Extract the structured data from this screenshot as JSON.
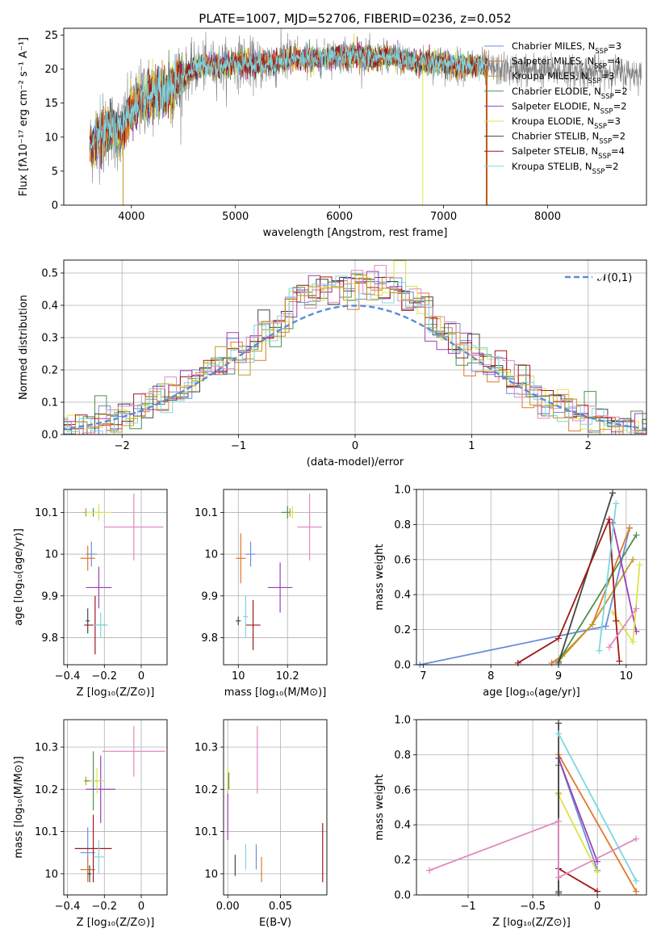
{
  "colors": [
    "#6a8fd8",
    "#e0782a",
    "#c09a20",
    "#4e8f4e",
    "#9b40b8",
    "#dde24a",
    "#444444",
    "#a01818",
    "#7ad8e0",
    "#e08ac0",
    "#909090"
  ],
  "chart_data": [
    {
      "id": "spectrum",
      "type": "line",
      "title": "PLATE=1007, MJD=52706, FIBERID=0236, z=0.052",
      "xlabel": "wavelength [Angstrom, rest frame]",
      "ylabel": "Flux [fλ10⁻¹⁷ erg cm⁻² s⁻¹ A⁻¹]",
      "xlim": [
        3350,
        8950
      ],
      "ylim": [
        0,
        26
      ],
      "xticks": [
        4000,
        5000,
        6000,
        7000,
        8000
      ],
      "yticks": [
        0,
        5,
        10,
        15,
        20,
        25
      ],
      "grid": false,
      "legend_position": "top-right",
      "observed_color": "#808080",
      "continuum": {
        "x": [
          3600,
          3700,
          3800,
          3900,
          3950,
          4000,
          4100,
          4200,
          4300,
          4400,
          4500,
          4600,
          4700,
          4800,
          4900,
          5000,
          5100,
          5200,
          5300,
          5400,
          5500,
          5600,
          5700,
          5800,
          5900,
          6000,
          6100,
          6200,
          6300,
          6400,
          6500,
          6600,
          6700,
          6800,
          6900,
          7000,
          7100,
          7200,
          7300,
          7400
        ],
        "y": [
          8.5,
          10.5,
          11.5,
          10.5,
          12.0,
          14.0,
          15.5,
          16.5,
          16.5,
          17.5,
          19.0,
          20.0,
          20.5,
          20.5,
          20.5,
          21.0,
          21.0,
          20.5,
          21.0,
          21.0,
          21.5,
          21.5,
          21.5,
          21.5,
          21.8,
          22.0,
          21.8,
          22.0,
          21.5,
          21.8,
          21.8,
          21.5,
          21.0,
          21.0,
          21.0,
          21.0,
          20.5,
          20.5,
          20.5,
          20.5
        ]
      },
      "models_end_x": 7420,
      "observed_end_x": 8900,
      "series": [
        {
          "name": "Chabrier MILES, N$_{SSP}$=3",
          "label_main": "Chabrier MILES, N",
          "sub": "SSP",
          "label_tail": "=3"
        },
        {
          "name": "Salpeter MILES, N$_{SSP}$=4",
          "label_main": "Salpeter MILES, N",
          "sub": "SSP",
          "label_tail": "=4"
        },
        {
          "name": "Kroupa MILES, N$_{SSP}$=3",
          "label_main": "Kroupa MILES, N",
          "sub": "SSP",
          "label_tail": "=3"
        },
        {
          "name": "Chabrier ELODIE, N$_{SSP}$=2",
          "label_main": "Chabrier ELODIE, N",
          "sub": "SSP",
          "label_tail": "=2"
        },
        {
          "name": "Salpeter ELODIE, N$_{SSP}$=2",
          "label_main": "Salpeter ELODIE, N",
          "sub": "SSP",
          "label_tail": "=2"
        },
        {
          "name": "Kroupa ELODIE, N$_{SSP}$=3",
          "label_main": "Kroupa ELODIE, N",
          "sub": "SSP",
          "label_tail": "=3"
        },
        {
          "name": "Chabrier STELIB, N$_{SSP}$=2",
          "label_main": "Chabrier STELIB, N",
          "sub": "SSP",
          "label_tail": "=2"
        },
        {
          "name": "Salpeter STELIB, N$_{SSP}$=4",
          "label_main": "Salpeter STELIB, N",
          "sub": "SSP",
          "label_tail": "=4"
        },
        {
          "name": "Kroupa STELIB, N$_{SSP}$=2",
          "label_main": "Kroupa STELIB, N",
          "sub": "SSP",
          "label_tail": "=2"
        }
      ]
    },
    {
      "id": "residuals",
      "type": "step",
      "xlabel": "(data-model)/error",
      "ylabel": "Normed distribution",
      "xlim": [
        -2.5,
        2.5
      ],
      "ylim": [
        0,
        0.54
      ],
      "xticks": [
        -2,
        -1,
        0,
        1,
        2
      ],
      "yticks": [
        0.0,
        0.1,
        0.2,
        0.3,
        0.4,
        0.5
      ],
      "grid": true,
      "legend": {
        "label": "𝒩(0,1)",
        "position": "top-right"
      },
      "gaussian": {
        "mean": 0,
        "sigma": 1
      },
      "bin_width": 0.1
    },
    {
      "id": "age-vs-Z",
      "type": "errorbar",
      "xlabel": "Z [log₁₀(Z/Z⊙)]",
      "ylabel": "age  [log₁₀(age/yr)]",
      "xlim": [
        -0.42,
        0.14
      ],
      "ylim": [
        9.735,
        10.155
      ],
      "xticks": [
        -0.4,
        -0.2,
        0.0
      ],
      "yticks": [
        9.8,
        9.9,
        10.0,
        10.1
      ],
      "grid": true,
      "points": [
        {
          "c": 0,
          "x": -0.27,
          "xerr": 0.03,
          "y": 10.0,
          "yerr": 0.03
        },
        {
          "c": 1,
          "x": -0.29,
          "xerr": 0.04,
          "y": 9.99,
          "yerr": 0.03
        },
        {
          "c": 2,
          "x": -0.3,
          "xerr": 0.01,
          "y": 10.1,
          "yerr": 0.01
        },
        {
          "c": 3,
          "x": -0.26,
          "xerr": 0.04,
          "y": 10.1,
          "yerr": 0.01
        },
        {
          "c": 4,
          "x": -0.23,
          "xerr": 0.07,
          "y": 9.92,
          "yerr": 0.05
        },
        {
          "c": 5,
          "x": -0.23,
          "xerr": 0.07,
          "y": 10.1,
          "yerr": 0.02
        },
        {
          "c": 6,
          "x": -0.29,
          "xerr": 0.01,
          "y": 9.84,
          "yerr": 0.03
        },
        {
          "c": 7,
          "x": -0.25,
          "xerr": 0.06,
          "y": 9.83,
          "yerr": 0.07
        },
        {
          "c": 8,
          "x": -0.22,
          "xerr": 0.04,
          "y": 9.83,
          "yerr": 0.03
        },
        {
          "c": 9,
          "x": -0.04,
          "xerr": 0.16,
          "y": 10.065,
          "yerr": 0.08
        }
      ]
    },
    {
      "id": "age-vs-mass",
      "type": "errorbar",
      "xlabel": "mass [log₁₀(M/M⊙)]",
      "ylabel": "",
      "xlim": [
        9.94,
        10.36
      ],
      "ylim": [
        9.735,
        10.155
      ],
      "xticks": [
        10.0,
        10.2
      ],
      "yticks": [
        9.8,
        9.9,
        10.0,
        10.1
      ],
      "grid": true,
      "points": [
        {
          "c": 0,
          "x": 10.05,
          "xerr": 0.02,
          "y": 10.0,
          "yerr": 0.03
        },
        {
          "c": 1,
          "x": 10.01,
          "xerr": 0.02,
          "y": 9.99,
          "yerr": 0.06
        },
        {
          "c": 2,
          "x": 10.21,
          "xerr": 0.01,
          "y": 10.1,
          "yerr": 0.01
        },
        {
          "c": 3,
          "x": 10.2,
          "xerr": 0.025,
          "y": 10.1,
          "yerr": 0.015
        },
        {
          "c": 4,
          "x": 10.17,
          "xerr": 0.05,
          "y": 9.92,
          "yerr": 0.06
        },
        {
          "c": 5,
          "x": 10.22,
          "xerr": 0.01,
          "y": 10.1,
          "yerr": 0.015
        },
        {
          "c": 6,
          "x": 10.0,
          "xerr": 0.01,
          "y": 9.84,
          "yerr": 0.01
        },
        {
          "c": 7,
          "x": 10.06,
          "xerr": 0.03,
          "y": 9.83,
          "yerr": 0.06
        },
        {
          "c": 8,
          "x": 10.03,
          "xerr": 0.01,
          "y": 9.85,
          "yerr": 0.05
        },
        {
          "c": 9,
          "x": 10.29,
          "xerr": 0.05,
          "y": 10.065,
          "yerr": 0.08
        }
      ]
    },
    {
      "id": "weight-vs-age",
      "type": "line",
      "xlabel": "age  [log₁₀(age/yr)]",
      "ylabel": "mass weight",
      "xlim": [
        6.9,
        10.3
      ],
      "ylim": [
        0,
        1
      ],
      "xticks": [
        7,
        8,
        9,
        10
      ],
      "yticks": [
        0.0,
        0.2,
        0.4,
        0.6,
        0.8,
        1.0
      ],
      "grid": true,
      "series": [
        {
          "c": 0,
          "x": [
            6.95,
            9.7,
            10.05
          ],
          "y": [
            0.0,
            0.22,
            0.78
          ]
        },
        {
          "c": 1,
          "x": [
            8.9,
            9.05,
            9.5,
            10.05
          ],
          "y": [
            0.01,
            0.05,
            0.23,
            0.78
          ]
        },
        {
          "c": 2,
          "x": [
            9.0,
            9.5,
            10.1
          ],
          "y": [
            0.02,
            0.23,
            0.6
          ]
        },
        {
          "c": 3,
          "x": [
            9.0,
            10.15
          ],
          "y": [
            0.02,
            0.74
          ]
        },
        {
          "c": 4,
          "x": [
            9.8,
            10.15
          ],
          "y": [
            0.81,
            0.19
          ]
        },
        {
          "c": 5,
          "x": [
            9.8,
            10.1,
            10.2
          ],
          "y": [
            0.3,
            0.13,
            0.57
          ]
        },
        {
          "c": 6,
          "x": [
            9.0,
            9.8
          ],
          "y": [
            0.01,
            0.98
          ]
        },
        {
          "c": 7,
          "x": [
            8.4,
            9.0,
            9.75,
            9.85,
            9.9
          ],
          "y": [
            0.01,
            0.15,
            0.83,
            0.25,
            0.02
          ]
        },
        {
          "c": 8,
          "x": [
            9.6,
            9.85
          ],
          "y": [
            0.08,
            0.92
          ]
        },
        {
          "c": 9,
          "x": [
            9.75,
            10.15
          ],
          "y": [
            0.1,
            0.32
          ]
        }
      ]
    },
    {
      "id": "mass-vs-Z",
      "type": "errorbar",
      "xlabel": "Z [log₁₀(Z/Z⊙)]",
      "ylabel": "mass [log₁₀(M/M⊙)]",
      "xlim": [
        -0.42,
        0.14
      ],
      "ylim": [
        9.95,
        10.365
      ],
      "xticks": [
        -0.4,
        -0.2,
        0.0
      ],
      "yticks": [
        10.0,
        10.1,
        10.2,
        10.3
      ],
      "grid": true,
      "points": [
        {
          "c": 0,
          "x": -0.29,
          "xerr": 0.04,
          "y": 10.05,
          "yerr": 0.06
        },
        {
          "c": 1,
          "x": -0.29,
          "xerr": 0.04,
          "y": 10.01,
          "yerr": 0.03
        },
        {
          "c": 2,
          "x": -0.3,
          "xerr": 0.01,
          "y": 10.22,
          "yerr": 0.01
        },
        {
          "c": 3,
          "x": -0.26,
          "xerr": 0.04,
          "y": 10.22,
          "yerr": 0.07
        },
        {
          "c": 4,
          "x": -0.22,
          "xerr": 0.08,
          "y": 10.2,
          "yerr": 0.08
        },
        {
          "c": 5,
          "x": -0.24,
          "xerr": 0.04,
          "y": 10.22,
          "yerr": 0.03
        },
        {
          "c": 6,
          "x": -0.28,
          "xerr": 0.01,
          "y": 10.0,
          "yerr": 0.02
        },
        {
          "c": 7,
          "x": -0.26,
          "xerr": 0.1,
          "y": 10.06,
          "yerr": 0.08
        },
        {
          "c": 8,
          "x": -0.23,
          "xerr": 0.03,
          "y": 10.04,
          "yerr": 0.04
        },
        {
          "c": 9,
          "x": -0.04,
          "xerr": 0.17,
          "y": 10.29,
          "yerr": 0.06
        }
      ]
    },
    {
      "id": "mass-vs-ebv",
      "type": "errorbar",
      "xlabel": "E(B-V)",
      "ylabel": "",
      "xlim": [
        -0.004,
        0.094
      ],
      "ylim": [
        9.95,
        10.365
      ],
      "xticks": [
        0.0,
        0.05
      ],
      "xtick_labels": [
        "0.00",
        "0.05"
      ],
      "yticks": [
        10.0,
        10.1,
        10.2,
        10.3
      ],
      "grid": true,
      "points": [
        {
          "c": 0,
          "x": 0.027,
          "xerr": 0,
          "y": 10.04,
          "yerr": 0.03
        },
        {
          "c": 1,
          "x": 0.032,
          "xerr": 0,
          "y": 10.01,
          "yerr": 0.03
        },
        {
          "c": 2,
          "x": 0.0,
          "xerr": 0,
          "y": 10.22,
          "yerr": 0.02
        },
        {
          "c": 3,
          "x": 0.001,
          "xerr": 0,
          "y": 10.22,
          "yerr": 0.02
        },
        {
          "c": 4,
          "x": 0.0,
          "xerr": 0,
          "y": 10.14,
          "yerr": 0.06
        },
        {
          "c": 5,
          "x": 0.0,
          "xerr": 0,
          "y": 10.22,
          "yerr": 0.03
        },
        {
          "c": 6,
          "x": 0.007,
          "xerr": 0,
          "y": 10.02,
          "yerr": 0.025
        },
        {
          "c": 7,
          "x": 0.09,
          "xerr": 0,
          "y": 10.05,
          "yerr": 0.07
        },
        {
          "c": 8,
          "x": 0.017,
          "xerr": 0,
          "y": 10.04,
          "yerr": 0.03
        },
        {
          "c": 9,
          "x": 0.028,
          "xerr": 0,
          "y": 10.27,
          "yerr": 0.08
        }
      ]
    },
    {
      "id": "weight-vs-Z",
      "type": "line",
      "xlabel": "Z [log₁₀(Z/Z⊙)]",
      "ylabel": "mass weight",
      "xlim": [
        -1.4,
        0.38
      ],
      "ylim": [
        0,
        1
      ],
      "xticks": [
        -1.0,
        -0.5,
        0.0
      ],
      "yticks": [
        0.0,
        0.2,
        0.4,
        0.6,
        0.8,
        1.0
      ],
      "grid": true,
      "series": [
        {
          "c": 0,
          "x": [
            -0.3,
            0.0
          ],
          "y": [
            0.78,
            0.14
          ]
        },
        {
          "c": 1,
          "x": [
            -0.3,
            0.3
          ],
          "y": [
            0.8,
            0.02
          ]
        },
        {
          "c": 2,
          "x": [
            -0.3,
            -0.3
          ],
          "y": [
            0.02,
            0.58
          ]
        },
        {
          "c": 3,
          "x": [
            -0.3,
            -0.3
          ],
          "y": [
            0.02,
            0.74
          ]
        },
        {
          "c": 4,
          "x": [
            -0.3,
            0.0
          ],
          "y": [
            0.78,
            0.19
          ]
        },
        {
          "c": 5,
          "x": [
            -0.3,
            0.0
          ],
          "y": [
            0.57,
            0.13
          ]
        },
        {
          "c": 6,
          "x": [
            -0.3,
            -0.3
          ],
          "y": [
            0.01,
            0.98
          ]
        },
        {
          "c": 7,
          "x": [
            -0.3,
            0.0
          ],
          "y": [
            0.15,
            0.02
          ]
        },
        {
          "c": 8,
          "x": [
            -0.3,
            0.3
          ],
          "y": [
            0.92,
            0.08
          ]
        },
        {
          "c": 9,
          "x": [
            -1.3,
            -0.3,
            -0.3,
            0.3
          ],
          "y": [
            0.14,
            0.42,
            0.1,
            0.32
          ]
        }
      ]
    }
  ]
}
